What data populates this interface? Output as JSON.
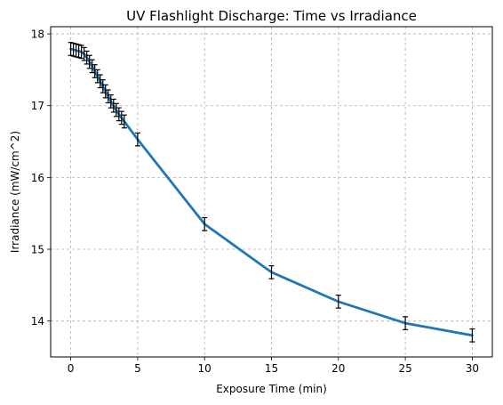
{
  "chart_data": {
    "type": "line",
    "title": "UV Flashlight Discharge: Time vs Irradiance",
    "xlabel": "Exposure Time (min)",
    "ylabel": "Irradiance (mW/cm^2)",
    "xlim": [
      -1.5,
      31.5
    ],
    "ylim": [
      13.5,
      18.1
    ],
    "xticks": [
      0,
      5,
      10,
      15,
      20,
      25,
      30
    ],
    "yticks": [
      14,
      15,
      16,
      17,
      18
    ],
    "grid": true,
    "series": [
      {
        "x": [
          0.0,
          0.2,
          0.4,
          0.6,
          0.8,
          1.0,
          1.2,
          1.4,
          1.6,
          1.8,
          2.0,
          2.2,
          2.4,
          2.6,
          2.8,
          3.0,
          3.2,
          3.4,
          3.6,
          3.8,
          4.0,
          5,
          10,
          15,
          20,
          25,
          30
        ],
        "y": [
          17.79,
          17.78,
          17.77,
          17.76,
          17.75,
          17.72,
          17.67,
          17.61,
          17.55,
          17.48,
          17.41,
          17.34,
          17.27,
          17.2,
          17.13,
          17.06,
          17.0,
          16.94,
          16.88,
          16.83,
          16.78,
          16.53,
          15.35,
          14.68,
          14.27,
          13.97,
          13.8
        ],
        "yerr": 0.09,
        "color": "#1f77b4"
      }
    ]
  }
}
